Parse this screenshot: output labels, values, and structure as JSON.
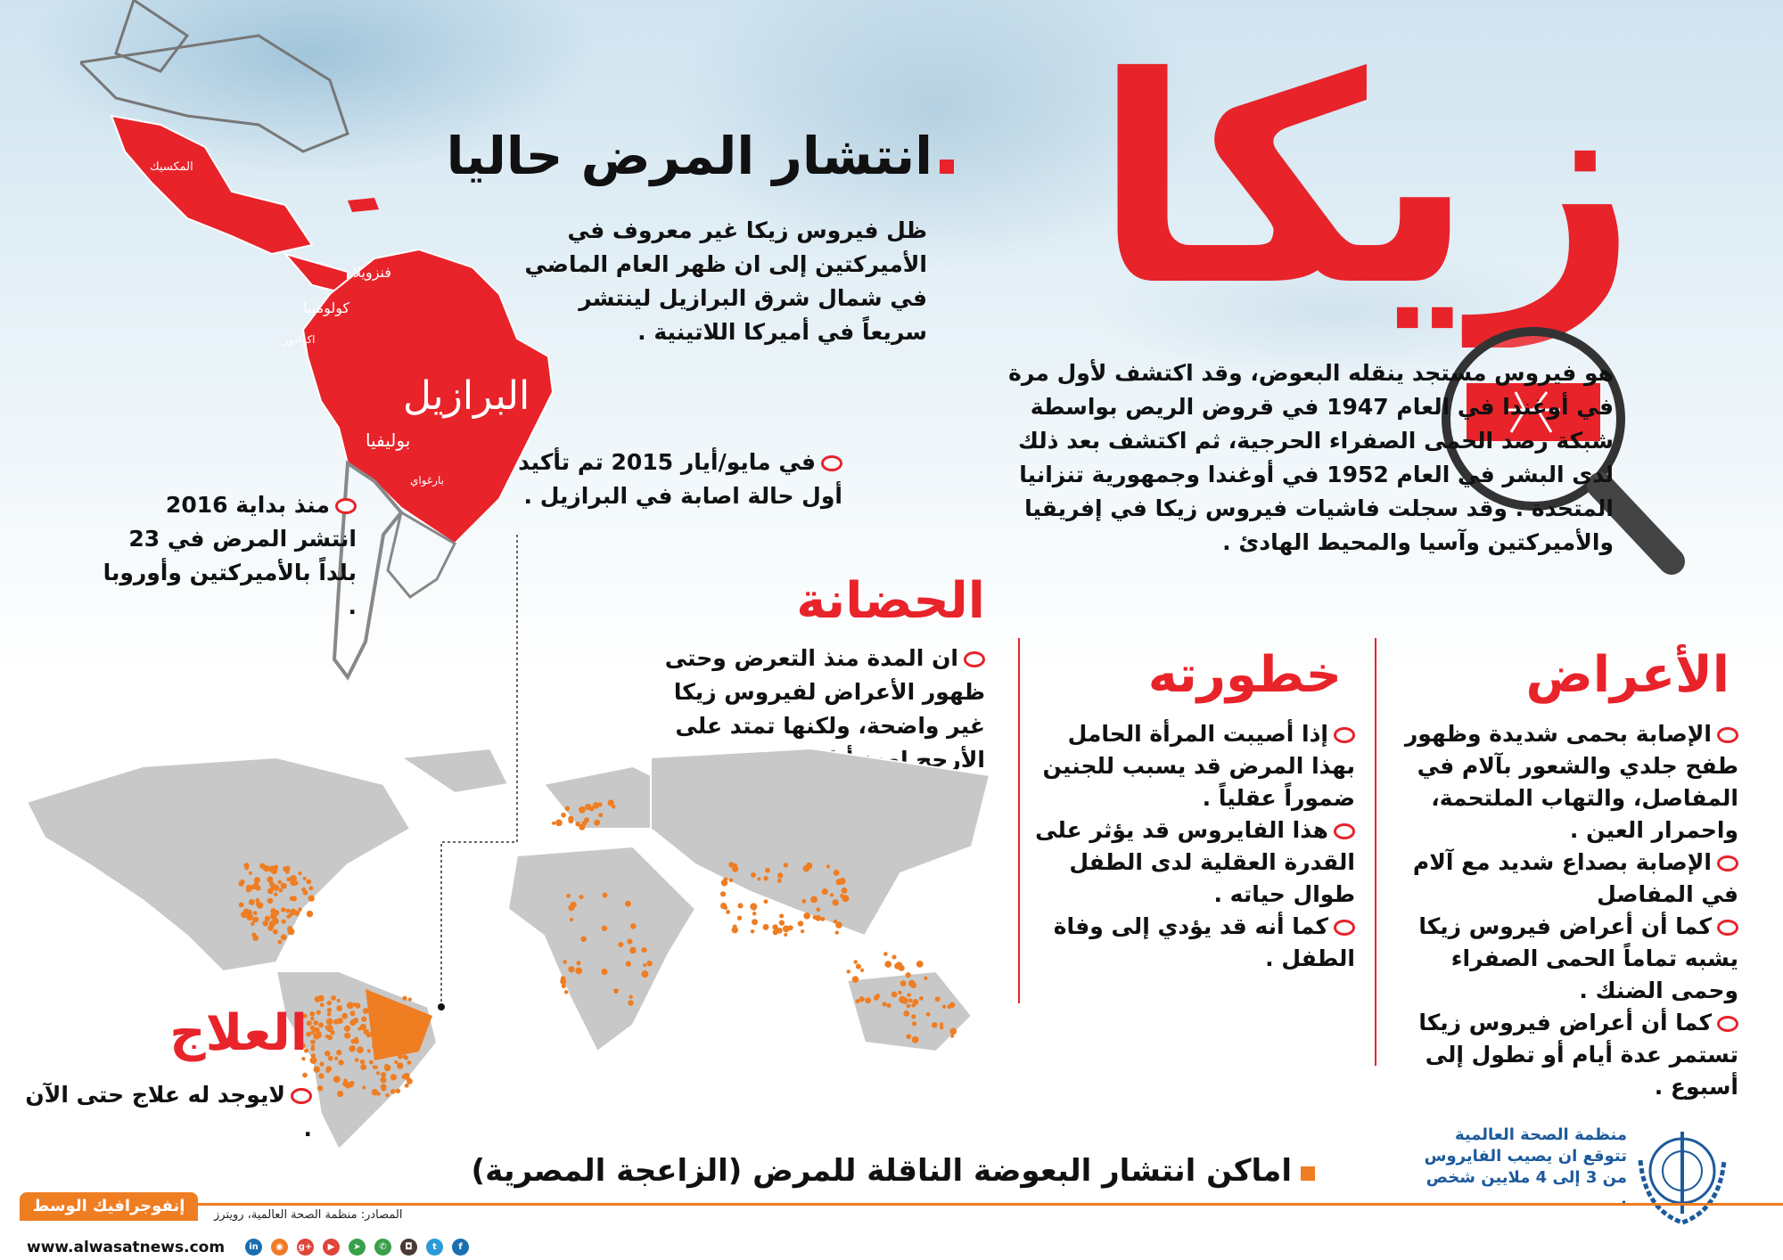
{
  "title": "زيكا",
  "spread": {
    "heading": "انتشار المرض حاليا",
    "text": "ظل فيروس زيكا غير معروف في الأميركتين إلى ان ظهر العام الماضي في شمال شرق البرازيل لينتشر سريعاً في أميركا اللاتينية ."
  },
  "description": "هو فيروس مستجد ينقله البعوض، وقد اكتشف لأول مرة في أوغندا في العام 1947 في قروض الريص بواسطة شبكة رصد الحمى الصفراء الحرجية، ثم اكتشف بعد ذلك لدى البشر في العام 1952 في أوغندا وجمهورية تنزانيا المتحدة . وقد سجلت فاشيات فيروس زيكا في إفريقيا والأميركتين وآسيا والمحيط الهادئ .",
  "map_labels": {
    "mexico": "المكسيك",
    "venezuela": "فنزويلا",
    "colombia": "كولومبيا",
    "ecuador": "اكوادور",
    "brazil": "البرازيل",
    "bolivia": "بوليفيا",
    "paraguay": "بارغواي"
  },
  "callouts": {
    "may_2015": "في مايو/أيار 2015 تم تأكيد أول حالة اصابة في البرازيل .",
    "since_2016": "منذ بداية 2016 انتشر المرض في 23 بلداً بالأميركتين وأوروبا ."
  },
  "incubation": {
    "heading": "الحضانة",
    "text": "ان المدة منذ التعرض وحتى ظهور الأعراض لفيروس زيكا غير واضحة، ولكنها تمتد على الأرجح لعدة أيام ."
  },
  "severity": {
    "heading": "خطورته",
    "items": [
      "إذا أصيبت المرأة الحامل بهذا المرض قد يسبب للجنين ضموراً عقلياً .",
      "هذا الفايروس قد يؤثر على القدرة العقلية لدى الطفل طوال حياته .",
      "كما أنه قد يؤدي إلى وفاة الطفل ."
    ]
  },
  "symptoms": {
    "heading": "الأعراض",
    "items": [
      "الإصابة بحمى شديدة وظهور طفح جلدي والشعور بآلام في المفاصل، والتهاب الملتحمة، واحمرار العين .",
      "الإصابة بصداع شديد مع آلام في المفاصل",
      "كما أن أعراض فيروس زيكا يشبه تماماً الحمى الصفراء وحمى الضنك .",
      "كما أن أعراض فيروس زيكا تستمر عدة أيام أو تطول إلى أسبوع ."
    ]
  },
  "treatment": {
    "heading": "العلاج",
    "text": "لايوجد له علاج حتى الآن ."
  },
  "mosquito_map_title": "اماكن انتشار البعوضة الناقلة للمرض (الزاعجة المصرية)",
  "who_note": "منظمة الصحة العالمية تتوقع ان يصيب الفايروس من 3 إلى 4 ملايين شخص .",
  "footer": {
    "brand": "إنفوجرافيك الوسط",
    "sources": "المصادر: منظمة الصحة العالمية، رويترز",
    "website": "www.alwasatnews.com",
    "social": [
      {
        "icon": "linkedin-icon",
        "glyph": "in",
        "color": "#1a6fb0"
      },
      {
        "icon": "rss-icon",
        "glyph": "◉",
        "color": "#f07a28"
      },
      {
        "icon": "google-plus-icon",
        "glyph": "g+",
        "color": "#e0453a"
      },
      {
        "icon": "youtube-icon",
        "glyph": "▶",
        "color": "#e0453a"
      },
      {
        "icon": "telegram-icon",
        "glyph": "➤",
        "color": "#3aa04a"
      },
      {
        "icon": "whatsapp-icon",
        "glyph": "✆",
        "color": "#3aa04a"
      },
      {
        "icon": "instagram-icon",
        "glyph": "◘",
        "color": "#4a3a34"
      },
      {
        "icon": "twitter-icon",
        "glyph": "t",
        "color": "#2a9ad8"
      },
      {
        "icon": "facebook-icon",
        "glyph": "f",
        "color": "#1a6fb0"
      }
    ]
  },
  "colors": {
    "red": "#e8232a",
    "orange": "#ef7d22",
    "map_gray": "#c8c8c8",
    "who_blue": "#1d5a9c"
  }
}
